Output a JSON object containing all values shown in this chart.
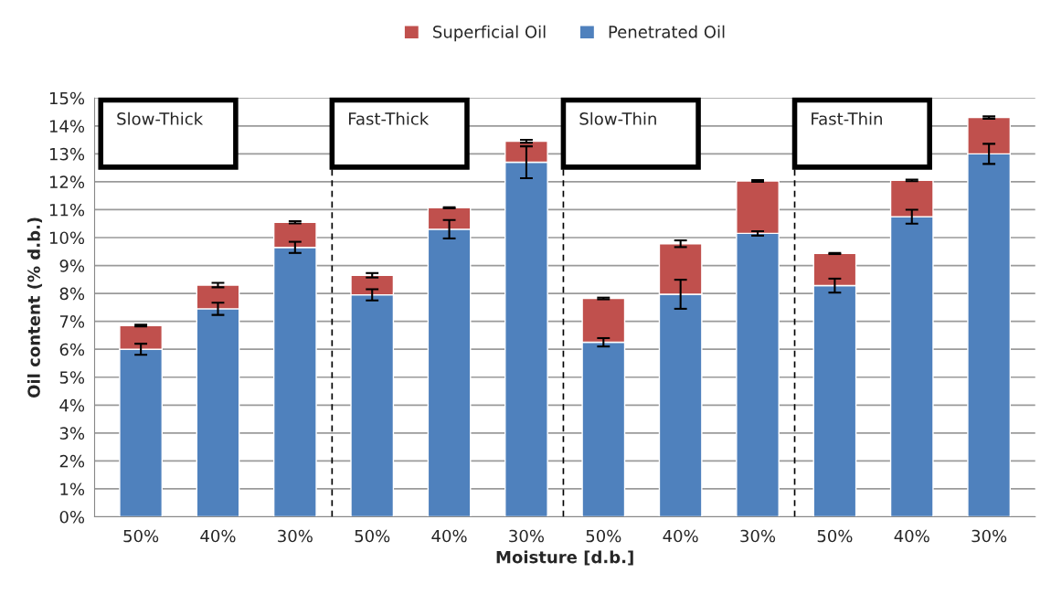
{
  "chart_data": {
    "type": "bar",
    "stacked": true,
    "xlabel": "Moisture [d.b.]",
    "ylabel": "Oil content (% d.b.)",
    "categories": [
      "50%",
      "40%",
      "30%",
      "50%",
      "40%",
      "30%",
      "50%",
      "40%",
      "30%",
      "50%",
      "40%",
      "30%"
    ],
    "series": [
      {
        "name": "Penetrated Oil",
        "color": "#4f81bd",
        "values": [
          6.0,
          7.45,
          9.65,
          7.95,
          10.3,
          12.7,
          6.25,
          7.97,
          10.15,
          8.28,
          10.75,
          13.0
        ],
        "errors": [
          0.2,
          0.22,
          0.2,
          0.2,
          0.33,
          0.57,
          0.15,
          0.52,
          0.08,
          0.25,
          0.25,
          0.36
        ]
      },
      {
        "name": "Superficial Oil",
        "color": "#c0504d",
        "values": [
          0.85,
          0.85,
          0.9,
          0.7,
          0.77,
          0.75,
          1.57,
          1.81,
          1.88,
          1.15,
          1.3,
          1.3
        ],
        "errors": [
          0.03,
          0.08,
          0.04,
          0.08,
          0.02,
          0.05,
          0.03,
          0.12,
          0.03,
          0.02,
          0.03,
          0.04
        ]
      }
    ],
    "ylim": [
      0,
      15
    ],
    "yticks": [
      {
        "value": 0,
        "label": "0%"
      },
      {
        "value": 1,
        "label": "1%"
      },
      {
        "value": 2,
        "label": "2%"
      },
      {
        "value": 3,
        "label": "3%"
      },
      {
        "value": 4,
        "label": "4%"
      },
      {
        "value": 5,
        "label": "5%"
      },
      {
        "value": 6,
        "label": "6%"
      },
      {
        "value": 7,
        "label": "7%"
      },
      {
        "value": 8,
        "label": "8%"
      },
      {
        "value": 9,
        "label": "9%"
      },
      {
        "value": 10,
        "label": "10%"
      },
      {
        "value": 11,
        "label": "11%"
      },
      {
        "value": 12,
        "label": "12%"
      },
      {
        "value": 13,
        "label": "13%"
      },
      {
        "value": 14,
        "label": "14%"
      },
      {
        "value": 15,
        "label": "15%"
      }
    ],
    "grid": "y",
    "legend": "top",
    "annotations": [
      "Slow-Thick",
      "Fast-Thick",
      "Slow-Thin",
      "Fast-Thin"
    ]
  }
}
